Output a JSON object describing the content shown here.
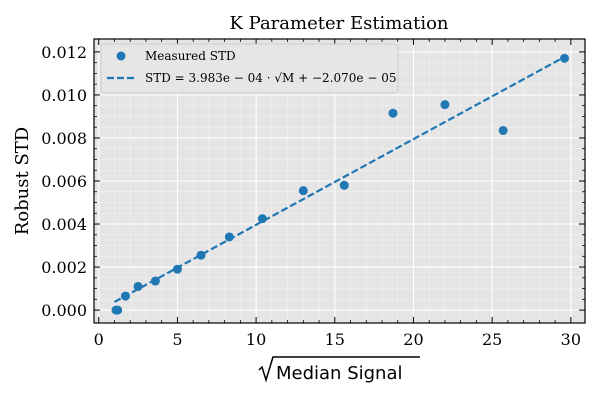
{
  "chart_data": {
    "type": "scatter",
    "title": "K Parameter Estimation",
    "xlabel": "Median Signal",
    "xlabel_sqrt": true,
    "ylabel": "Robust STD",
    "xlim": [
      -0.3,
      30.9
    ],
    "ylim": [
      -0.0006,
      0.0126
    ],
    "xticks": [
      0,
      5,
      10,
      15,
      20,
      25,
      30
    ],
    "yticks": [
      0.0,
      0.002,
      0.004,
      0.006,
      0.008,
      0.01,
      0.012
    ],
    "xtick_labels": [
      "0",
      "5",
      "10",
      "15",
      "20",
      "25",
      "30"
    ],
    "ytick_labels": [
      "0.000",
      "0.002",
      "0.004",
      "0.006",
      "0.008",
      "0.010",
      "0.012"
    ],
    "grid": true,
    "legend_position": "top-left",
    "colors": {
      "series": "#1f77b4",
      "plot_bg": "#e5e5e5",
      "grid": "#ffffff"
    },
    "series": [
      {
        "name": "Measured STD",
        "kind": "scatter",
        "x": [
          1.1,
          1.2,
          1.7,
          2.5,
          3.6,
          5.0,
          6.5,
          8.3,
          10.4,
          13.0,
          15.6,
          18.7,
          22.0,
          25.7,
          29.6
        ],
        "y": [
          0.0,
          0.0,
          0.00065,
          0.0011,
          0.00135,
          0.0019,
          0.00255,
          0.0034,
          0.00425,
          0.00555,
          0.0058,
          0.00915,
          0.00955,
          0.00835,
          0.0117
        ]
      },
      {
        "name": "STD = 3.983e − 04 · √M + −2.070e − 05",
        "kind": "line",
        "style": "dashed",
        "x": [
          1.0,
          29.6
        ],
        "y": [
          0.000378,
          0.011769
        ]
      }
    ]
  }
}
